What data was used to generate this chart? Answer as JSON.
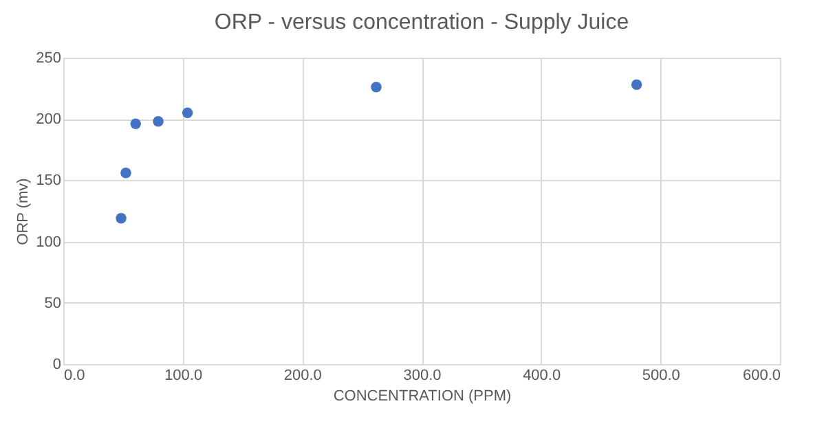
{
  "chart_data": {
    "type": "scatter",
    "title": "ORP - versus concentration - Supply Juice",
    "xlabel": "CONCENTRATION (PPM)",
    "ylabel": "ORP (mv)",
    "x": [
      48.4,
      52.4,
      60.6,
      79.5,
      104,
      262,
      480
    ],
    "series": [
      {
        "color": "#4472c4",
        "values": [
          119,
          156,
          196,
          198,
          205,
          226,
          228
        ]
      }
    ],
    "xlim": [
      0,
      600
    ],
    "xticks": [
      {
        "value": 0,
        "label": "0.0"
      },
      {
        "value": 100,
        "label": "100.0"
      },
      {
        "value": 200,
        "label": "200.0"
      },
      {
        "value": 300,
        "label": "300.0"
      },
      {
        "value": 400,
        "label": "400.0"
      },
      {
        "value": 500,
        "label": "500.0"
      },
      {
        "value": 600,
        "label": "600.0"
      }
    ],
    "ylim": [
      0,
      250
    ],
    "yticks": [
      0,
      50,
      100,
      150,
      200,
      250
    ],
    "grid": true,
    "marker": "circle"
  }
}
